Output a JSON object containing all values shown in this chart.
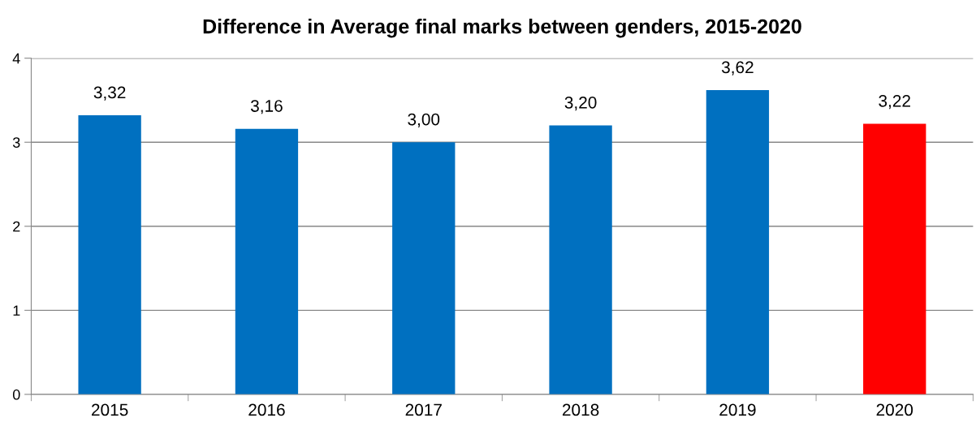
{
  "chart_data": {
    "type": "bar",
    "title": "Difference in Average final marks between genders, 2015-2020",
    "categories": [
      "2015",
      "2016",
      "2017",
      "2018",
      "2019",
      "2020"
    ],
    "values": [
      3.32,
      3.16,
      3.0,
      3.2,
      3.62,
      3.22
    ],
    "colors": [
      "#0070c0",
      "#0070c0",
      "#0070c0",
      "#0070c0",
      "#0070c0",
      "#ff0000"
    ],
    "value_labels": [
      "3,32",
      "3,16",
      "3,00",
      "3,20",
      "3,62",
      "3,22"
    ],
    "ylim": [
      0,
      4
    ],
    "yticks": [
      0,
      1,
      2,
      3,
      4
    ],
    "grid": "y",
    "legend": false
  }
}
